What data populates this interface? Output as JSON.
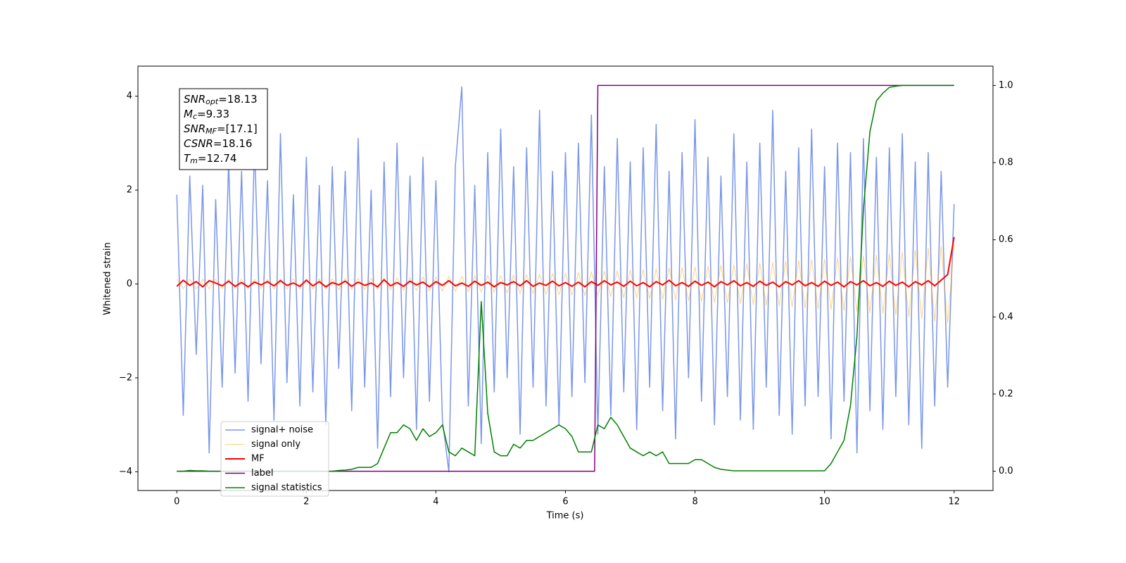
{
  "chart_data": {
    "type": "line",
    "xlabel": "Time (s)",
    "ylabel": "Whitened strain",
    "xlim": [
      -0.6,
      12.6
    ],
    "ylim": [
      -4.4,
      4.64
    ],
    "y2lim": [
      -0.05,
      1.05
    ],
    "xticks": [
      0,
      2,
      4,
      6,
      8,
      10,
      12
    ],
    "yticks": [
      {
        "value": -4,
        "label": "−4"
      },
      {
        "value": -2,
        "label": "−2"
      },
      0,
      2,
      4
    ],
    "y2ticks": [
      {
        "value": 0,
        "label": "0.0"
      },
      0.2,
      0.4,
      0.6,
      0.8,
      {
        "value": 1,
        "label": "1.0"
      }
    ],
    "legend_loc": "best",
    "annotation": [
      {
        "base": "SNR",
        "sub": "opt",
        "text": "=18.13"
      },
      {
        "base": "M",
        "sub": "c",
        "text": "=9.33"
      },
      {
        "base": "SNR",
        "sub": "MF",
        "text": "=[17.1]"
      },
      {
        "base": "CSNR",
        "sub": "",
        "text": "=18.16"
      },
      {
        "base": "T",
        "sub": "m",
        "text": "=12.74"
      }
    ],
    "x": [
      0,
      0.1,
      0.2,
      0.3,
      0.4,
      0.5,
      0.6,
      0.7,
      0.8,
      0.9,
      1,
      1.1,
      1.2,
      1.3,
      1.4,
      1.5,
      1.6,
      1.7,
      1.8,
      1.9,
      2,
      2.1,
      2.2,
      2.3,
      2.4,
      2.5,
      2.6,
      2.7,
      2.8,
      2.9,
      3,
      3.1,
      3.2,
      3.3,
      3.4,
      3.5,
      3.6,
      3.7,
      3.8,
      3.9,
      4,
      4.1,
      4.2,
      4.3,
      4.4,
      4.5,
      4.6,
      4.7,
      4.8,
      4.9,
      5,
      5.1,
      5.2,
      5.3,
      5.4,
      5.5,
      5.6,
      5.7,
      5.8,
      5.9,
      6,
      6.1,
      6.2,
      6.3,
      6.4,
      6.5,
      6.6,
      6.7,
      6.8,
      6.9,
      7,
      7.1,
      7.2,
      7.3,
      7.4,
      7.5,
      7.6,
      7.7,
      7.8,
      7.9,
      8,
      8.1,
      8.2,
      8.3,
      8.4,
      8.5,
      8.6,
      8.7,
      8.8,
      8.9,
      9,
      9.1,
      9.2,
      9.3,
      9.4,
      9.5,
      9.6,
      9.7,
      9.8,
      9.9,
      10,
      10.1,
      10.2,
      10.3,
      10.4,
      10.5,
      10.6,
      10.7,
      10.8,
      10.9,
      11,
      11.1,
      11.2,
      11.3,
      11.4,
      11.5,
      11.6,
      11.7,
      11.8,
      11.9,
      12
    ],
    "series": [
      {
        "name": "signal+ noise",
        "color": "#4169e1",
        "opacity": 0.7,
        "width": 1.5,
        "values": [
          1.9,
          -2.8,
          2.3,
          -1.5,
          2.1,
          -3.6,
          1.8,
          -2.2,
          2.6,
          -1.9,
          2.4,
          -2.5,
          3.0,
          -1.7,
          2.2,
          -2.9,
          3.2,
          -2.1,
          1.9,
          -2.6,
          2.7,
          -2.3,
          2.1,
          -3.0,
          2.5,
          -1.8,
          2.4,
          -2.7,
          3.1,
          -2.2,
          2.0,
          -3.5,
          2.6,
          -2.4,
          3.0,
          -2.0,
          2.3,
          -3.1,
          2.7,
          -2.5,
          2.2,
          -2.9,
          -4.0,
          2.5,
          4.2,
          -2.6,
          2.1,
          -3.4,
          2.8,
          -2.3,
          3.3,
          -2.0,
          2.5,
          -3.2,
          2.9,
          -2.2,
          3.7,
          -2.6,
          2.4,
          -3.0,
          2.8,
          -2.4,
          3.0,
          -2.1,
          3.6,
          -3.2,
          2.5,
          -2.8,
          3.1,
          -2.3,
          2.6,
          -3.1,
          2.9,
          -2.2,
          3.4,
          -2.7,
          2.4,
          -3.3,
          2.8,
          -2.0,
          3.5,
          -2.5,
          2.7,
          -3.0,
          2.3,
          -2.4,
          3.2,
          -2.9,
          2.6,
          -3.1,
          3.0,
          -2.2,
          3.7,
          -2.8,
          2.4,
          -3.2,
          2.9,
          -2.6,
          3.3,
          -2.4,
          2.5,
          -3.3,
          3.0,
          -2.5,
          2.8,
          -3.6,
          3.1,
          -2.7,
          2.7,
          -3.1,
          2.9,
          -2.4,
          3.2,
          -3.0,
          2.6,
          -3.5,
          2.8,
          -2.6,
          2.4,
          -2.2,
          1.7
        ]
      },
      {
        "name": "signal only",
        "color": "orange",
        "opacity": 0.5,
        "width": 1,
        "values": [
          0.1,
          -0.1,
          0.1,
          -0.1,
          0.1,
          -0.1,
          0.1,
          -0.1,
          0.1,
          -0.1,
          0.1,
          -0.1,
          0.1,
          -0.1,
          0.1,
          -0.11,
          0.11,
          -0.11,
          0.11,
          -0.11,
          0.11,
          -0.11,
          0.11,
          -0.11,
          0.11,
          -0.12,
          0.12,
          -0.12,
          0.12,
          -0.12,
          0.12,
          -0.12,
          0.13,
          -0.13,
          0.13,
          -0.14,
          0.14,
          -0.14,
          0.15,
          -0.15,
          0.15,
          -0.15,
          0.16,
          -0.16,
          0.16,
          -0.17,
          0.17,
          -0.17,
          0.18,
          -0.18,
          0.18,
          -0.19,
          0.19,
          -0.2,
          0.2,
          -0.21,
          0.21,
          -0.22,
          0.22,
          -0.23,
          0.23,
          -0.24,
          0.24,
          -0.25,
          0.26,
          -0.26,
          0.27,
          -0.27,
          0.28,
          -0.29,
          0.29,
          -0.3,
          0.31,
          -0.31,
          0.32,
          -0.33,
          0.34,
          -0.34,
          0.35,
          -0.36,
          0.36,
          -0.37,
          0.38,
          -0.39,
          0.4,
          -0.4,
          0.41,
          -0.42,
          0.43,
          -0.44,
          0.44,
          -0.45,
          0.46,
          -0.47,
          0.48,
          -0.49,
          0.5,
          -0.51,
          0.52,
          -0.53,
          0.53,
          -0.54,
          0.55,
          -0.57,
          0.58,
          -0.59,
          0.6,
          -0.61,
          0.62,
          -0.63,
          0.64,
          -0.66,
          0.68,
          -0.7,
          0.72,
          -0.74,
          0.77,
          -0.79,
          0.81,
          -0.83,
          0.85
        ]
      },
      {
        "name": "MF",
        "color": "red",
        "opacity": 1,
        "width": 2,
        "values": [
          -0.05,
          0.08,
          -0.03,
          0.05,
          -0.06,
          0.07,
          0.02,
          -0.04,
          0.06,
          -0.05,
          0.03,
          -0.06,
          0.04,
          -0.02,
          0.05,
          -0.04,
          0.07,
          -0.03,
          0.02,
          -0.05,
          0.08,
          -0.04,
          0.05,
          -0.06,
          0.03,
          -0.02,
          0.06,
          -0.05,
          0.04,
          -0.03,
          0.02,
          -0.06,
          0.09,
          -0.04,
          0.03,
          -0.05,
          0.06,
          -0.02,
          0.04,
          -0.06,
          0.05,
          -0.03,
          0.07,
          -0.04,
          0.02,
          -0.05,
          0.06,
          -0.03,
          0.04,
          -0.06,
          0.03,
          -0.02,
          0.05,
          -0.04,
          0.07,
          -0.05,
          0.02,
          -0.03,
          0.06,
          -0.04,
          0.03,
          -0.05,
          0.04,
          -0.06,
          0.05,
          -0.03,
          0.07,
          -0.02,
          0.04,
          -0.05,
          0.06,
          -0.04,
          0.03,
          -0.06,
          0.05,
          -0.02,
          0.08,
          -0.04,
          0.03,
          -0.05,
          0.06,
          -0.03,
          0.04,
          -0.06,
          0.05,
          -0.02,
          0.07,
          -0.04,
          0.03,
          -0.05,
          0.06,
          -0.03,
          0.04,
          -0.06,
          0.05,
          -0.02,
          0.07,
          -0.04,
          0.03,
          -0.05,
          0.06,
          -0.03,
          0.04,
          -0.06,
          0.05,
          -0.02,
          0.07,
          -0.04,
          0.03,
          -0.05,
          0.06,
          -0.03,
          0.04,
          -0.06,
          0.05,
          -0.02,
          0.07,
          -0.04,
          0.08,
          0.2,
          1.0
        ]
      },
      {
        "name": "label",
        "color": "purple",
        "opacity": 1,
        "width": 1.5,
        "axis": "y2",
        "x": [
          0,
          6.45,
          6.5,
          12
        ],
        "values": [
          0,
          0,
          1,
          1
        ]
      },
      {
        "name": "signal statistics",
        "color": "green",
        "opacity": 1,
        "width": 1.5,
        "axis": "y2",
        "values": [
          0,
          0,
          0.002,
          0.001,
          0.001,
          0,
          0,
          0,
          0,
          0,
          0,
          0,
          0,
          0,
          0,
          0,
          0,
          0,
          0,
          0,
          0,
          0,
          0,
          0,
          0,
          0.002,
          0.003,
          0.005,
          0.01,
          0.01,
          0.01,
          0.02,
          0.06,
          0.1,
          0.1,
          0.12,
          0.11,
          0.08,
          0.11,
          0.09,
          0.1,
          0.12,
          0.05,
          0.04,
          0.06,
          0.05,
          0.04,
          0.44,
          0.15,
          0.05,
          0.04,
          0.04,
          0.07,
          0.06,
          0.08,
          0.08,
          0.09,
          0.1,
          0.11,
          0.12,
          0.11,
          0.09,
          0.05,
          0.05,
          0.05,
          0.12,
          0.11,
          0.14,
          0.12,
          0.09,
          0.06,
          0.05,
          0.04,
          0.05,
          0.04,
          0.05,
          0.02,
          0.02,
          0.02,
          0.02,
          0.03,
          0.03,
          0.02,
          0.01,
          0.005,
          0.003,
          0.001,
          0.001,
          0.001,
          0.001,
          0.001,
          0.001,
          0.001,
          0.001,
          0.001,
          0.001,
          0.001,
          0.001,
          0.001,
          0.001,
          0.001,
          0.02,
          0.05,
          0.08,
          0.17,
          0.35,
          0.68,
          0.88,
          0.96,
          0.98,
          0.995,
          0.998,
          1,
          1,
          1,
          1,
          1,
          1,
          1,
          1,
          1
        ]
      }
    ]
  }
}
